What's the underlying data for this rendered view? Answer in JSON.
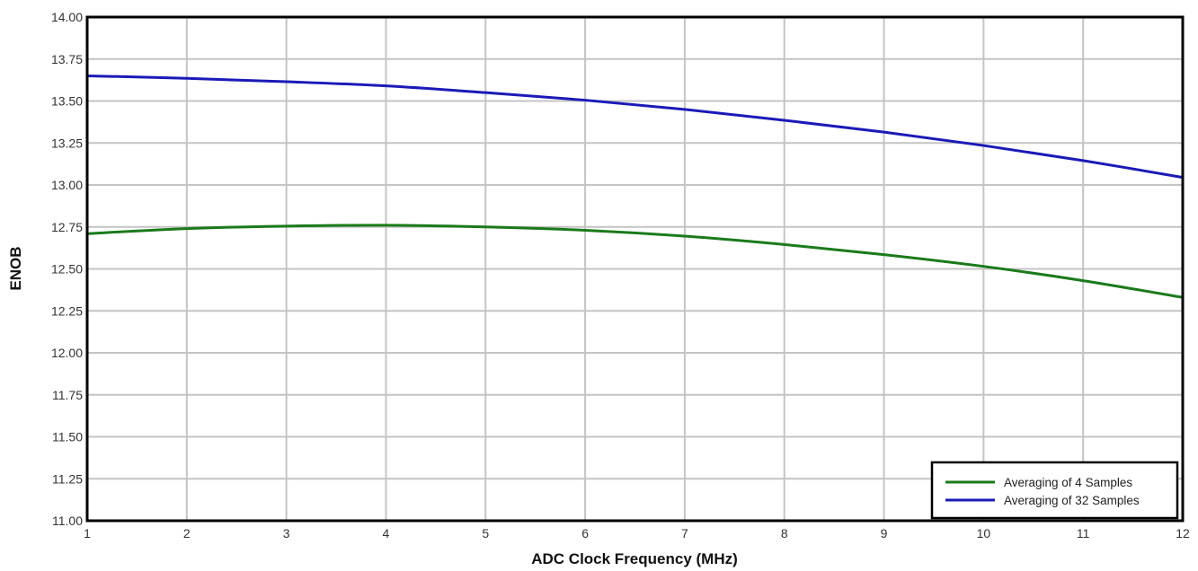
{
  "chart_data": {
    "type": "line",
    "title": "",
    "xlabel": "ADC Clock Frequency (MHz)",
    "ylabel": "ENOB",
    "xlim": [
      1,
      12
    ],
    "ylim": [
      11.0,
      14.0
    ],
    "grid": true,
    "legend_position": "bottom-right",
    "x_ticks": [
      "1",
      "2",
      "3",
      "4",
      "5",
      "6",
      "7",
      "8",
      "9",
      "10",
      "11",
      "12"
    ],
    "y_ticks": [
      "11.00",
      "11.25",
      "11.50",
      "11.75",
      "12.00",
      "12.25",
      "12.50",
      "12.75",
      "13.00",
      "13.25",
      "13.50",
      "13.75",
      "14.00"
    ],
    "x": [
      1,
      2,
      3,
      4,
      5,
      6,
      7,
      8,
      9,
      10,
      11,
      12
    ],
    "series": [
      {
        "name": "Averaging of 4 Samples",
        "color": "#1a7a1a",
        "values": [
          12.71,
          12.74,
          12.755,
          12.76,
          12.75,
          12.73,
          12.695,
          12.645,
          12.585,
          12.515,
          12.43,
          12.33
        ]
      },
      {
        "name": "Averaging of 32 Samples",
        "color": "#1a1ab8",
        "values": [
          13.65,
          13.635,
          13.615,
          13.59,
          13.55,
          13.505,
          13.45,
          13.385,
          13.315,
          13.235,
          13.145,
          13.045
        ]
      }
    ]
  }
}
